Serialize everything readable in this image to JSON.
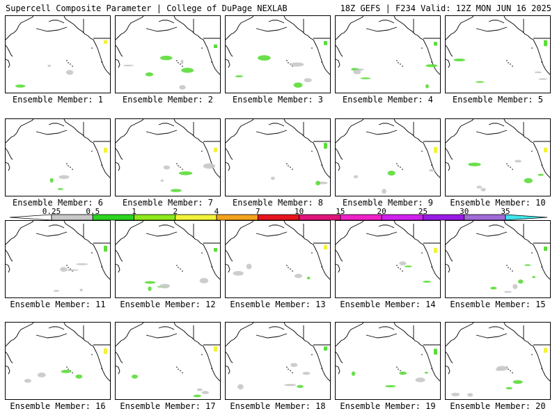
{
  "header": {
    "title": "Supercell Composite Parameter | College of DuPage NEXLAB",
    "run_info": "18Z GEFS | F234 Valid: 12Z MON JUN 16 2025"
  },
  "panel_label_prefix": "Ensemble Member:",
  "members": [
    {
      "number": "1"
    },
    {
      "number": "2"
    },
    {
      "number": "3"
    },
    {
      "number": "4"
    },
    {
      "number": "5"
    },
    {
      "number": "6"
    },
    {
      "number": "7"
    },
    {
      "number": "8"
    },
    {
      "number": "9"
    },
    {
      "number": "10"
    },
    {
      "number": "11"
    },
    {
      "number": "12"
    },
    {
      "number": "13"
    },
    {
      "number": "14"
    },
    {
      "number": "15"
    },
    {
      "number": "16"
    },
    {
      "number": "17"
    },
    {
      "number": "18"
    },
    {
      "number": "19"
    },
    {
      "number": "20"
    }
  ],
  "legend": {
    "bins": [
      {
        "label": "0.25",
        "color": "#c8c8c8"
      },
      {
        "label": "0.5",
        "color": "#2bd41e"
      },
      {
        "label": "1",
        "color": "#8ee81b"
      },
      {
        "label": "2",
        "color": "#f2f23a"
      },
      {
        "label": "4",
        "color": "#f5a21f"
      },
      {
        "label": "7",
        "color": "#e8141e"
      },
      {
        "label": "10",
        "color": "#e0147a"
      },
      {
        "label": "15",
        "color": "#f020c8"
      },
      {
        "label": "20",
        "color": "#d020f0"
      },
      {
        "label": "25",
        "color": "#9a1ae6"
      },
      {
        "label": "30",
        "color": "#a26ad8"
      },
      {
        "label": "35",
        "color": "#3ee6ec"
      }
    ]
  }
}
